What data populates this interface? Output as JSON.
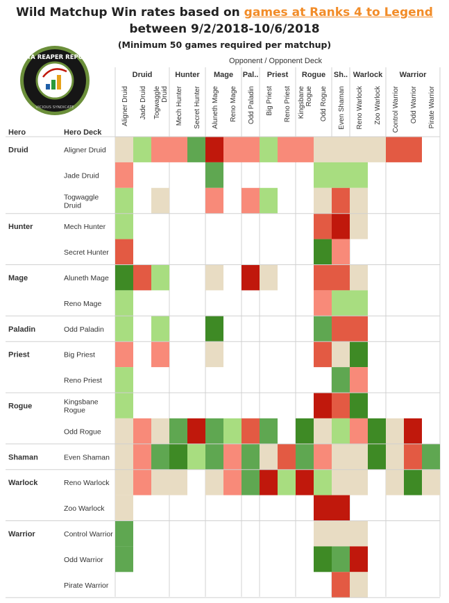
{
  "header": {
    "title_prefix": "Wild Matchup Win rates based on ",
    "title_link": "games at Ranks 4 to Legend",
    "title_line2": "between 9/2/2018-10/6/2018",
    "subtitle": "(Minimum 50 games required per matchup)"
  },
  "logo": {
    "text": "DATA REAPER REPORT",
    "subtext": "VICIOUS SYNDICATE"
  },
  "colors": {
    "neutral": "#e8dcc3",
    "light_green": "#a8dd80",
    "mid_green": "#5fa751",
    "dark_green": "#3e8a25",
    "light_red": "#f88a79",
    "mid_red": "#e35a43",
    "dark_red": "#c0180c",
    "line": "#d0d0d0"
  },
  "chart_data": {
    "type": "heatmap",
    "header_opponent": "Opponent  /  Opponent Deck",
    "row_axis_labels": [
      "Hero",
      "Hero Deck"
    ],
    "opponent_classes": [
      "Druid",
      "Hunter",
      "Mage",
      "Pal..",
      "Priest",
      "Rogue",
      "Sh..",
      "Warlock",
      "Warrior"
    ],
    "opponent_decks": [
      "Aligner Druid",
      "Jade Druid",
      "Togwaggle Druid",
      "Mech Hunter",
      "Secret Hunter",
      "Aluneth Mage",
      "Reno Mage",
      "Odd Paladin",
      "Big Priest",
      "Reno Priest",
      "Kingsbane Rogue",
      "Odd Rogue",
      "Even Shaman",
      "Reno Warlock",
      "Zoo Warlock",
      "Control Warrior",
      "Odd Warrior",
      "Pirate Warrior"
    ],
    "hero_classes": [
      "Druid",
      "Hunter",
      "Mage",
      "Paladin",
      "Priest",
      "Rogue",
      "Shaman",
      "Warlock",
      "Warrior"
    ],
    "hero_decks": [
      "Aligner Druid",
      "Jade Druid",
      "Togwaggle Druid",
      "Mech Hunter",
      "Secret Hunter",
      "Aluneth Mage",
      "Reno Mage",
      "Odd Paladin",
      "Big Priest",
      "Reno Priest",
      "Kingsbane Rogue",
      "Odd Rogue",
      "Even Shaman",
      "Reno Warlock",
      "Zoo Warlock",
      "Control Warrior",
      "Odd Warrior",
      "Pirate Warrior"
    ],
    "cell_rating_scale": [
      "dark_red",
      "mid_red",
      "light_red",
      "neutral",
      "light_green",
      "mid_green",
      "dark_green"
    ],
    "cells": [
      [
        "n",
        "G",
        "r",
        "r",
        "M",
        "R",
        "r",
        "r",
        "G",
        "r",
        "r",
        "n",
        "n",
        "n",
        "n",
        "m",
        "m",
        ""
      ],
      [
        "r",
        "",
        "",
        "",
        "",
        "M",
        "",
        "",
        "",
        "",
        "",
        "G",
        "G",
        "G",
        "",
        "",
        "",
        ""
      ],
      [
        "G",
        "",
        "n",
        "",
        "",
        "r",
        "",
        "r",
        "G",
        "",
        "",
        "n",
        "m",
        "n",
        "",
        "",
        "",
        ""
      ],
      [
        "G",
        "",
        "",
        "",
        "",
        "",
        "",
        "",
        "",
        "",
        "",
        "m",
        "R",
        "n",
        "",
        "",
        "",
        ""
      ],
      [
        "m",
        "",
        "",
        "",
        "",
        "",
        "",
        "",
        "",
        "",
        "",
        "D",
        "r",
        "",
        "",
        "",
        "",
        ""
      ],
      [
        "D",
        "m",
        "G",
        "",
        "",
        "n",
        "",
        "R",
        "n",
        "",
        "",
        "m",
        "m",
        "n",
        "",
        "",
        "",
        ""
      ],
      [
        "G",
        "",
        "",
        "",
        "",
        "",
        "",
        "",
        "",
        "",
        "",
        "r",
        "G",
        "G",
        "",
        "",
        "",
        ""
      ],
      [
        "G",
        "",
        "G",
        "",
        "",
        "D",
        "",
        "",
        "",
        "",
        "",
        "M",
        "m",
        "m",
        "",
        "",
        "",
        ""
      ],
      [
        "r",
        "",
        "r",
        "",
        "",
        "n",
        "",
        "",
        "",
        "",
        "",
        "m",
        "n",
        "D",
        "",
        "",
        "",
        ""
      ],
      [
        "G",
        "",
        "",
        "",
        "",
        "",
        "",
        "",
        "",
        "",
        "",
        "",
        "M",
        "r",
        "",
        "",
        "",
        ""
      ],
      [
        "G",
        "",
        "",
        "",
        "",
        "",
        "",
        "",
        "",
        "",
        "",
        "R",
        "m",
        "D",
        "",
        "",
        "",
        ""
      ],
      [
        "n",
        "r",
        "n",
        "M",
        "R",
        "M",
        "G",
        "m",
        "M",
        "",
        "D",
        "n",
        "G",
        "r",
        "D",
        "n",
        "R",
        ""
      ],
      [
        "n",
        "r",
        "M",
        "D",
        "G",
        "M",
        "r",
        "M",
        "n",
        "m",
        "M",
        "r",
        "n",
        "n",
        "D",
        "n",
        "m",
        "M"
      ],
      [
        "n",
        "r",
        "n",
        "n",
        "",
        "n",
        "r",
        "M",
        "R",
        "G",
        "R",
        "G",
        "n",
        "n",
        "",
        "n",
        "D",
        "n"
      ],
      [
        "n",
        "",
        "",
        "",
        "",
        "",
        "",
        "",
        "",
        "",
        "",
        "R",
        "R",
        "",
        "",
        "",
        "",
        ""
      ],
      [
        "M",
        "",
        "",
        "",
        "",
        "",
        "",
        "",
        "",
        "",
        "",
        "n",
        "n",
        "n",
        "",
        "",
        "",
        ""
      ],
      [
        "M",
        "",
        "",
        "",
        "",
        "",
        "",
        "",
        "",
        "",
        "",
        "D",
        "M",
        "R",
        "",
        "",
        "",
        ""
      ],
      [
        "",
        "",
        "",
        "",
        "",
        "",
        "",
        "",
        "",
        "",
        "",
        "",
        "m",
        "n",
        "",
        "",
        "",
        ""
      ]
    ]
  }
}
